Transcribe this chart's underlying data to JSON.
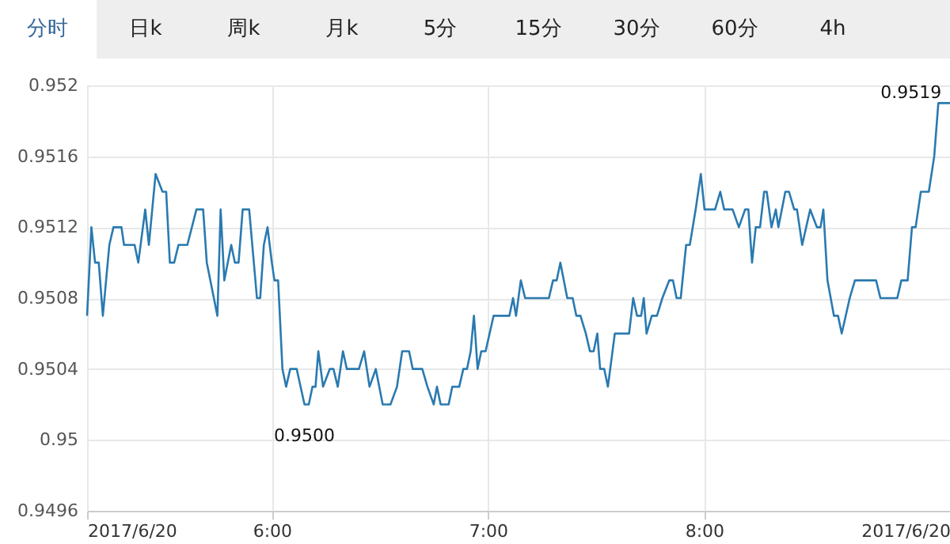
{
  "chart_data": {
    "type": "line",
    "x": [
      5.145,
      5.165,
      5.182,
      5.199,
      5.218,
      5.248,
      5.267,
      5.304,
      5.316,
      5.365,
      5.382,
      5.414,
      5.431,
      5.462,
      5.494,
      5.511,
      5.528,
      5.548,
      5.568,
      5.609,
      5.651,
      5.682,
      5.699,
      5.748,
      5.763,
      5.78,
      5.812,
      5.829,
      5.846,
      5.865,
      5.895,
      5.931,
      5.946,
      5.963,
      5.98,
      6.0,
      6.012,
      6.029,
      6.049,
      6.066,
      6.085,
      6.115,
      6.151,
      6.171,
      6.188,
      6.202,
      6.215,
      6.237,
      6.268,
      6.285,
      6.305,
      6.329,
      6.347,
      6.403,
      6.427,
      6.452,
      6.481,
      6.513,
      6.549,
      6.579,
      6.603,
      6.635,
      6.652,
      6.696,
      6.72,
      6.749,
      6.764,
      6.781,
      6.818,
      6.835,
      6.867,
      6.886,
      6.903,
      6.92,
      6.935,
      6.941,
      6.952,
      6.969,
      6.989,
      7.026,
      7.099,
      7.116,
      7.13,
      7.152,
      7.172,
      7.282,
      7.301,
      7.318,
      7.335,
      7.367,
      7.392,
      7.409,
      7.428,
      7.453,
      7.472,
      7.489,
      7.506,
      7.519,
      7.538,
      7.555,
      7.587,
      7.653,
      7.672,
      7.69,
      7.709,
      7.721,
      7.734,
      7.758,
      7.782,
      7.807,
      7.839,
      7.856,
      7.873,
      7.892,
      7.917,
      7.934,
      7.961,
      7.985,
      8.002,
      8.051,
      8.075,
      8.093,
      8.132,
      8.161,
      8.19,
      8.205,
      8.222,
      8.239,
      8.259,
      8.278,
      8.29,
      8.312,
      8.332,
      8.344,
      8.376,
      8.393,
      8.417,
      8.43,
      8.454,
      8.491,
      8.522,
      8.539,
      8.552,
      8.571,
      8.601,
      8.62,
      8.637,
      8.674,
      8.698,
      8.796,
      8.816,
      8.894,
      8.913,
      8.942,
      8.962,
      8.979,
      9.003,
      9.04,
      9.065,
      9.084,
      9.138
    ],
    "series": [
      {
        "color": "#2a7ab0",
        "values": [
          0.9507,
          0.9512,
          0.951,
          0.951,
          0.9507,
          0.9511,
          0.9512,
          0.9512,
          0.9511,
          0.9511,
          0.951,
          0.9513,
          0.9511,
          0.9515,
          0.9514,
          0.9514,
          0.951,
          0.951,
          0.9511,
          0.9511,
          0.9513,
          0.9513,
          0.951,
          0.9507,
          0.9513,
          0.9509,
          0.9511,
          0.951,
          0.951,
          0.9513,
          0.9513,
          0.9508,
          0.9508,
          0.9511,
          0.9512,
          0.951,
          0.9509,
          0.9509,
          0.9504,
          0.9503,
          0.9504,
          0.9504,
          0.9502,
          0.9502,
          0.9503,
          0.9503,
          0.9505,
          0.9503,
          0.9504,
          0.9504,
          0.9503,
          0.9505,
          0.9504,
          0.9504,
          0.9505,
          0.9503,
          0.9504,
          0.9502,
          0.9502,
          0.9503,
          0.9505,
          0.9505,
          0.9504,
          0.9504,
          0.9503,
          0.9502,
          0.9503,
          0.9502,
          0.9502,
          0.9503,
          0.9503,
          0.9504,
          0.9504,
          0.9505,
          0.9507,
          0.9506,
          0.9504,
          0.9505,
          0.9505,
          0.9507,
          0.9507,
          0.9508,
          0.9507,
          0.9509,
          0.9508,
          0.9508,
          0.9509,
          0.9509,
          0.951,
          0.9508,
          0.9508,
          0.9507,
          0.9507,
          0.9506,
          0.9505,
          0.9505,
          0.9506,
          0.9504,
          0.9504,
          0.9503,
          0.9506,
          0.9506,
          0.9508,
          0.9507,
          0.9507,
          0.9508,
          0.9506,
          0.9507,
          0.9507,
          0.9508,
          0.9509,
          0.9509,
          0.9508,
          0.9508,
          0.9511,
          0.9511,
          0.9513,
          0.9515,
          0.9513,
          0.9513,
          0.9514,
          0.9513,
          0.9513,
          0.9512,
          0.9513,
          0.9513,
          0.951,
          0.9512,
          0.9512,
          0.9514,
          0.9514,
          0.9512,
          0.9513,
          0.9512,
          0.9514,
          0.9514,
          0.9513,
          0.9513,
          0.9511,
          0.9513,
          0.9512,
          0.9512,
          0.9513,
          0.9509,
          0.9507,
          0.9507,
          0.9506,
          0.9508,
          0.9509,
          0.9509,
          0.9508,
          0.9508,
          0.9509,
          0.9509,
          0.9512,
          0.9512,
          0.9514,
          0.9514,
          0.9516,
          0.9519,
          0.9519
        ]
      }
    ],
    "xlim": [
      5.145,
      9.138
    ],
    "xticks": [
      {
        "value": 5.145,
        "label": "2017/6/20"
      },
      {
        "value": 6,
        "label": "6:00"
      },
      {
        "value": 7,
        "label": "7:00"
      },
      {
        "value": 8,
        "label": "8:00"
      },
      {
        "value": 9.138,
        "label": "2017/6/20"
      }
    ],
    "ylim": [
      0.9496,
      0.952
    ],
    "yticks": [
      0.9496,
      0.95,
      0.9504,
      0.9508,
      0.9512,
      0.9516,
      0.952
    ],
    "grid": true,
    "annotations": [
      "分时",
      "日k",
      "周k",
      "月k",
      "5分",
      "15分",
      "30分",
      "60分",
      "4h",
      "0.9500",
      {
        "text": "0.9519",
        "x": 9.084,
        "y": 0.9519
      }
    ]
  }
}
